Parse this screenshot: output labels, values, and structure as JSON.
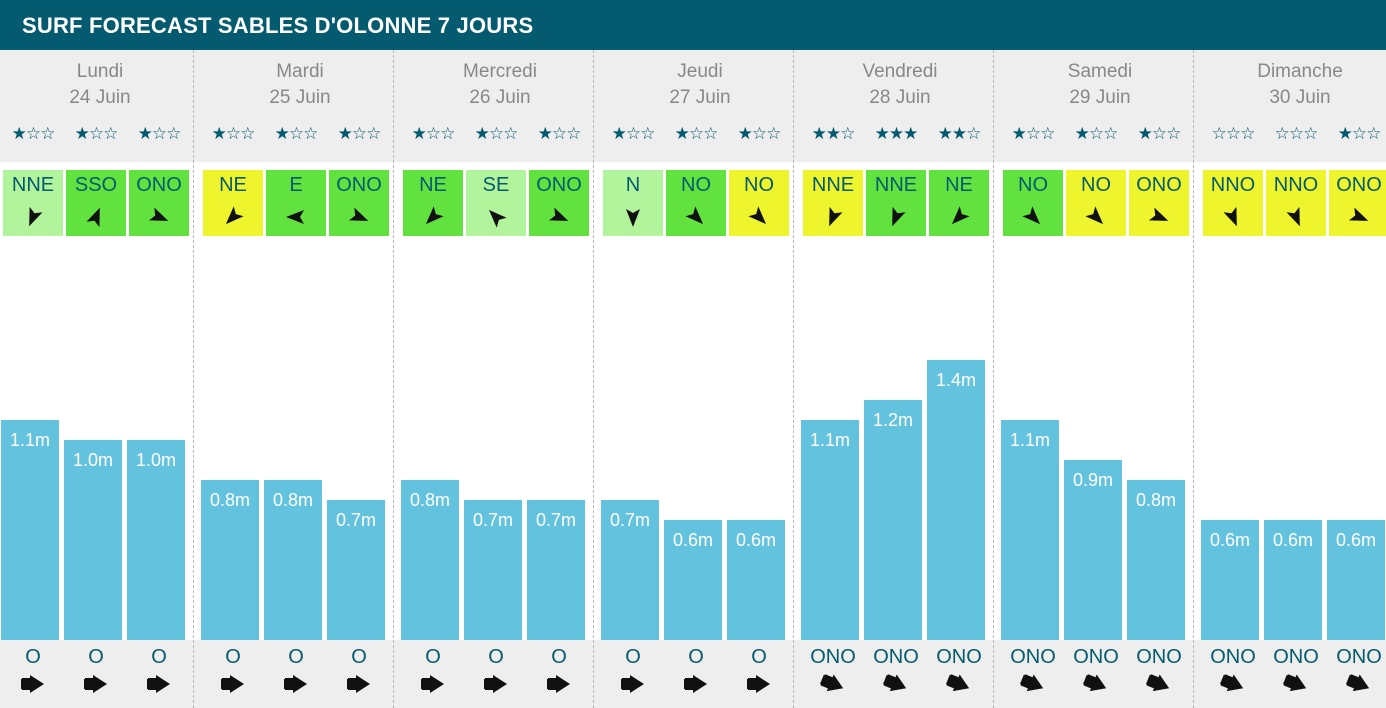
{
  "title": "SURF FORECAST SABLES D'OLONNE 7 JOURS",
  "colors": {
    "header_bg": "#045a6e",
    "bar": "#63c3de",
    "wind_light_green": "#b2f49b",
    "wind_green": "#62e23f",
    "wind_yellow": "#eef52d",
    "text_dark": "#045a6e",
    "day_text": "#888888"
  },
  "chart_data": {
    "type": "bar",
    "unit": "m",
    "ylim": [
      0,
      1.5
    ],
    "days": [
      {
        "name": "Lundi",
        "date": "24 Juin",
        "slots": [
          {
            "rating": 1,
            "wind_dir": "NNE",
            "wind_color": "light-green",
            "height": 1.1,
            "label": "1.1m",
            "swell_dir": "O"
          },
          {
            "rating": 1,
            "wind_dir": "SSO",
            "wind_color": "green",
            "height": 1.0,
            "label": "1.0m",
            "swell_dir": "O"
          },
          {
            "rating": 1,
            "wind_dir": "ONO",
            "wind_color": "green",
            "height": 1.0,
            "label": "1.0m",
            "swell_dir": "O"
          }
        ]
      },
      {
        "name": "Mardi",
        "date": "25 Juin",
        "slots": [
          {
            "rating": 1,
            "wind_dir": "NE",
            "wind_color": "yellow",
            "height": 0.8,
            "label": "0.8m",
            "swell_dir": "O"
          },
          {
            "rating": 1,
            "wind_dir": "E",
            "wind_color": "green",
            "height": 0.8,
            "label": "0.8m",
            "swell_dir": "O"
          },
          {
            "rating": 1,
            "wind_dir": "ONO",
            "wind_color": "green",
            "height": 0.7,
            "label": "0.7m",
            "swell_dir": "O"
          }
        ]
      },
      {
        "name": "Mercredi",
        "date": "26 Juin",
        "slots": [
          {
            "rating": 1,
            "wind_dir": "NE",
            "wind_color": "green",
            "height": 0.8,
            "label": "0.8m",
            "swell_dir": "O"
          },
          {
            "rating": 1,
            "wind_dir": "SE",
            "wind_color": "light-green",
            "height": 0.7,
            "label": "0.7m",
            "swell_dir": "O"
          },
          {
            "rating": 1,
            "wind_dir": "ONO",
            "wind_color": "green",
            "height": 0.7,
            "label": "0.7m",
            "swell_dir": "O"
          }
        ]
      },
      {
        "name": "Jeudi",
        "date": "27 Juin",
        "slots": [
          {
            "rating": 1,
            "wind_dir": "N",
            "wind_color": "light-green",
            "height": 0.7,
            "label": "0.7m",
            "swell_dir": "O"
          },
          {
            "rating": 1,
            "wind_dir": "NO",
            "wind_color": "green",
            "height": 0.6,
            "label": "0.6m",
            "swell_dir": "O"
          },
          {
            "rating": 1,
            "wind_dir": "NO",
            "wind_color": "yellow",
            "height": 0.6,
            "label": "0.6m",
            "swell_dir": "O"
          }
        ]
      },
      {
        "name": "Vendredi",
        "date": "28 Juin",
        "slots": [
          {
            "rating": 2,
            "wind_dir": "NNE",
            "wind_color": "yellow",
            "height": 1.1,
            "label": "1.1m",
            "swell_dir": "ONO"
          },
          {
            "rating": 3,
            "wind_dir": "NNE",
            "wind_color": "green",
            "height": 1.2,
            "label": "1.2m",
            "swell_dir": "ONO"
          },
          {
            "rating": 2,
            "wind_dir": "NE",
            "wind_color": "green",
            "height": 1.4,
            "label": "1.4m",
            "swell_dir": "ONO"
          }
        ]
      },
      {
        "name": "Samedi",
        "date": "29 Juin",
        "slots": [
          {
            "rating": 1,
            "wind_dir": "NO",
            "wind_color": "green",
            "height": 1.1,
            "label": "1.1m",
            "swell_dir": "ONO"
          },
          {
            "rating": 1,
            "wind_dir": "NO",
            "wind_color": "yellow",
            "height": 0.9,
            "label": "0.9m",
            "swell_dir": "ONO"
          },
          {
            "rating": 1,
            "wind_dir": "ONO",
            "wind_color": "yellow",
            "height": 0.8,
            "label": "0.8m",
            "swell_dir": "ONO"
          }
        ]
      },
      {
        "name": "Dimanche",
        "date": "30 Juin",
        "slots": [
          {
            "rating": 0,
            "wind_dir": "NNO",
            "wind_color": "yellow",
            "height": 0.6,
            "label": "0.6m",
            "swell_dir": "ONO"
          },
          {
            "rating": 0,
            "wind_dir": "NNO",
            "wind_color": "yellow",
            "height": 0.6,
            "label": "0.6m",
            "swell_dir": "ONO"
          },
          {
            "rating": 1,
            "wind_dir": "ONO",
            "wind_color": "yellow",
            "height": 0.6,
            "label": "0.6m",
            "swell_dir": "ONO"
          }
        ]
      }
    ]
  }
}
